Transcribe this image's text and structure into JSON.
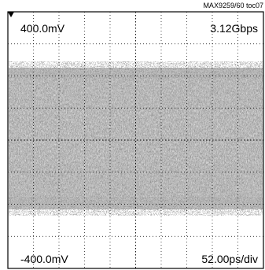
{
  "figure_id": "MAX9259/60 toc07",
  "readouts": {
    "top_left": "400.0mV",
    "top_right": "3.12Gbps",
    "bottom_left": "-400.0mV",
    "bottom_right": "52.00ps/div"
  },
  "colors": {
    "background": "#ffffff",
    "eye_dense": "#1a1a1a",
    "eye_light": "#9a9a9a",
    "grid": "#000000"
  },
  "chart_data": {
    "type": "scatter",
    "title": "",
    "xlabel": "",
    "ylabel": "",
    "vertical_scale": "100.0mV/div",
    "horizontal_scale": "52.00ps/div",
    "data_rate": "3.12Gbps",
    "ylim_mV": [
      -400.0,
      400.0
    ],
    "grid": {
      "x_divisions": 10,
      "y_divisions": 8,
      "style": "dotted"
    },
    "trigger_marker": "top-left",
    "eye_pattern": {
      "outer_envelope_mV": [
        -300,
        300
      ],
      "dense_band_mV": [
        -150,
        200
      ],
      "description": "closed eye, noise-filled band across full time span"
    }
  }
}
